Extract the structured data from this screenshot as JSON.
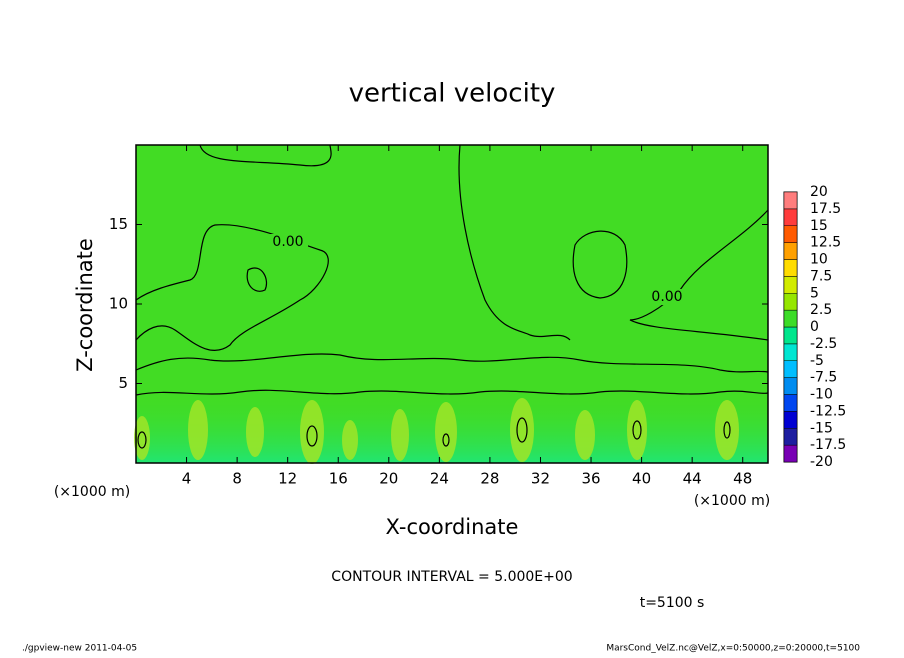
{
  "chart_data": {
    "type": "contour",
    "title": "vertical velocity",
    "xlabel": "X-coordinate",
    "ylabel": "Z-coordinate",
    "x_unit_label": "(×1000 m)",
    "xlim": [
      0,
      50
    ],
    "xticks": [
      4,
      8,
      12,
      16,
      20,
      24,
      28,
      32,
      36,
      40,
      44,
      48
    ],
    "ylim": [
      0,
      20
    ],
    "yticks": [
      5,
      10,
      15
    ],
    "colorbar": {
      "levels": [
        -20,
        -17.5,
        -15,
        -12.5,
        -10,
        -7.5,
        -5,
        -2.5,
        0,
        2.5,
        5,
        7.5,
        10,
        12.5,
        15,
        17.5,
        20
      ],
      "colors": [
        "#7800b4",
        "#1e1ea0",
        "#0000d2",
        "#0046f0",
        "#008cf0",
        "#00beff",
        "#00e6d2",
        "#00e68c",
        "#3cdc28",
        "#96e600",
        "#d2eb00",
        "#ffdc00",
        "#ffa000",
        "#ff5a00",
        "#ff3c3c",
        "#ff7d7d"
      ]
    },
    "contour_labels": [
      "0.00",
      "0.00"
    ],
    "contour_interval": "CONTOUR INTERVAL = 5.000E+00",
    "time_label": "t=5100 s",
    "footer_left": "./gpview-new  2011-04-05",
    "footer_right": "MarsCond_VelZ.nc@VelZ,x=0:50000,z=0:20000,t=5100"
  }
}
